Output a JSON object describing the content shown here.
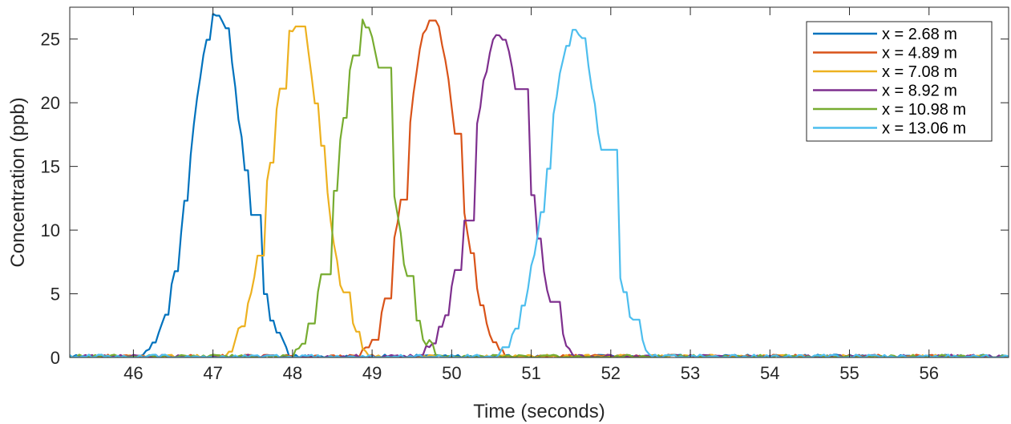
{
  "chart_data": {
    "type": "line",
    "title": "",
    "xlabel": "Time (seconds)",
    "ylabel": "Concentration (ppb)",
    "xlim": [
      45.2,
      57.0
    ],
    "ylim": [
      0,
      27.5
    ],
    "xticks": [
      46,
      47,
      48,
      49,
      50,
      51,
      52,
      53,
      54,
      55,
      56
    ],
    "yticks": [
      0,
      5,
      10,
      15,
      20,
      25
    ],
    "grid": false,
    "legend_position": "top-right",
    "series": [
      {
        "name": "x = 2.68 m",
        "color": "#0072BD",
        "peak_time": 47.05,
        "peak": 27.2,
        "width": 0.32
      },
      {
        "name": "x = 4.89 m",
        "color": "#D95319",
        "peak_time": 49.75,
        "peak": 26.7,
        "width": 0.32
      },
      {
        "name": "x = 7.08 m",
        "color": "#EDB120",
        "peak_time": 48.05,
        "peak": 26.3,
        "width": 0.32
      },
      {
        "name": "x = 8.92 m",
        "color": "#7E2F8E",
        "peak_time": 50.6,
        "peak": 25.5,
        "width": 0.34
      },
      {
        "name": "x = 10.98 m",
        "color": "#77AC30",
        "peak_time": 48.9,
        "peak": 26.2,
        "width": 0.32
      },
      {
        "name": "x = 13.06 m",
        "color": "#4DBEEE",
        "peak_time": 51.55,
        "peak": 25.6,
        "width": 0.34
      }
    ]
  }
}
